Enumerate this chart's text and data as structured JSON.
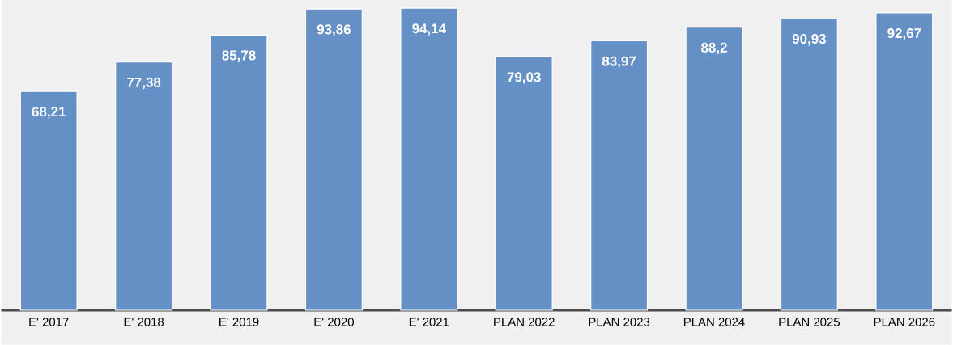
{
  "chart_data": {
    "type": "bar",
    "categories": [
      "E' 2017",
      "E' 2018",
      "E' 2019",
      "E' 2020",
      "E' 2021",
      "PLAN 2022",
      "PLAN 2023",
      "PLAN 2024",
      "PLAN 2025",
      "PLAN 2026"
    ],
    "values": [
      68.21,
      77.38,
      85.78,
      93.86,
      94.14,
      79.03,
      83.97,
      88.2,
      90.93,
      92.67
    ],
    "value_labels": [
      "68,21",
      "77,38",
      "85,78",
      "93,86",
      "94,14",
      "79,03",
      "83,97",
      "88,2",
      "90,93",
      "92,67"
    ],
    "color": "#6590c6",
    "tick_labels": "x"
  }
}
